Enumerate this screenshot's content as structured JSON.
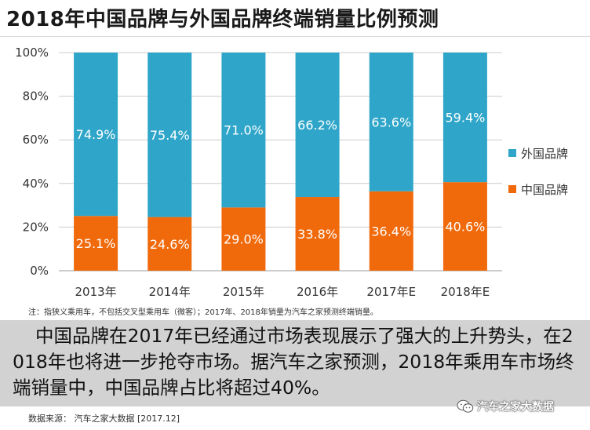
{
  "title": "2018年中国品牌与外国品牌终端销量比例预测",
  "note": "注：指狭义乘用车，不包括交叉型乘用车（微客）；2017年、2018年销量为汽车之家预测终端销量。",
  "summary": "中国品牌在2017年已经通过市场表现展示了强大的上升势头，在2018年也将进一步抢夺市场。据汽车之家预测，2018年乘用车市场终端销量中，中国品牌占比将超过40%。",
  "source": "数据来源： 汽车之家大数据 [2017.12]",
  "wechat_label": "汽车之家大数据",
  "colors": {
    "foreign": "#2fa6c9",
    "chinese": "#f06a0c",
    "grid": "#cccccc"
  },
  "chart_data": {
    "type": "bar",
    "stacked": true,
    "title": "2018年中国品牌与外国品牌终端销量比例预测",
    "categories": [
      "2013年",
      "2014年",
      "2015年",
      "2016年",
      "2017年E",
      "2018年E"
    ],
    "series": [
      {
        "name": "中国品牌",
        "values": [
          25.1,
          24.6,
          29.0,
          33.8,
          36.4,
          40.6
        ],
        "labels": [
          "25.1%",
          "24.6%",
          "29.0%",
          "33.8%",
          "36.4%",
          "40.6%"
        ]
      },
      {
        "name": "外国品牌",
        "values": [
          74.9,
          75.4,
          71.0,
          66.2,
          63.6,
          59.4
        ],
        "labels": [
          "74.9%",
          "75.4%",
          "71.0%",
          "66.2%",
          "63.6%",
          "59.4%"
        ]
      }
    ],
    "yticks": [
      "0%",
      "20%",
      "40%",
      "60%",
      "80%",
      "100%"
    ],
    "ylim": [
      0,
      100
    ],
    "grid": true,
    "legend": "right",
    "legend_entries": [
      "外国品牌",
      "中国品牌"
    ]
  }
}
